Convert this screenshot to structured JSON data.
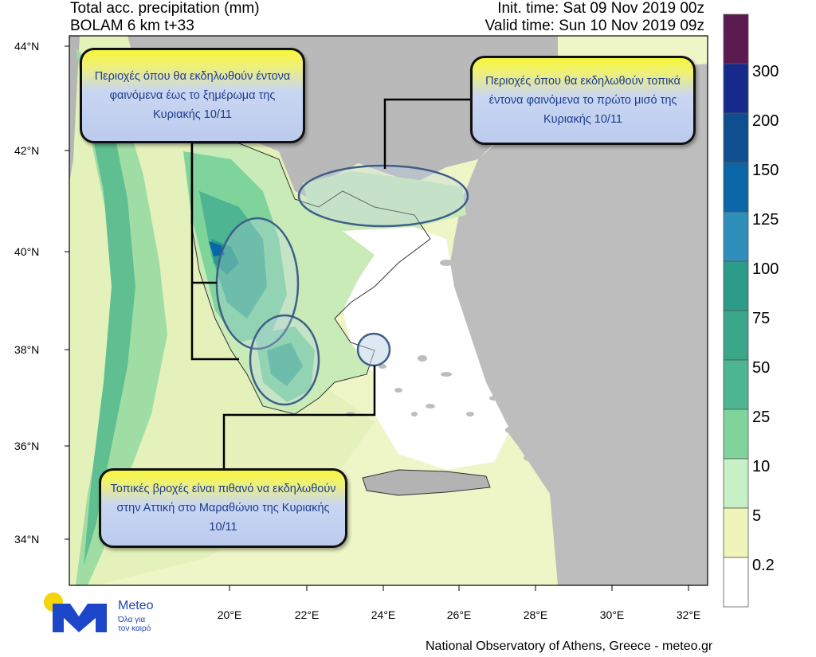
{
  "header": {
    "title_line1": "Total acc. precipitation (mm)",
    "title_line2": "BOLAM 6 km t+33",
    "init_time": "Init. time: Sat 09 Nov 2019 00z",
    "valid_time": "Valid time: Sun 10 Nov 2019 09z"
  },
  "axes": {
    "lat_labels": [
      "44°N",
      "42°N",
      "40°N",
      "38°N",
      "36°N",
      "34°N"
    ],
    "lon_labels": [
      "20°E",
      "22°E",
      "24°E",
      "26°E",
      "28°E",
      "30°E",
      "32°E"
    ]
  },
  "colorbar": {
    "levels": [
      "300",
      "200",
      "150",
      "125",
      "100",
      "75",
      "50",
      "25",
      "10",
      "5",
      "0.2"
    ],
    "colors": [
      "#5b1a50",
      "#162a8c",
      "#0f4f8f",
      "#0b66a8",
      "#2f8fbb",
      "#2c9b8a",
      "#3aa788",
      "#4db592",
      "#7fd49c",
      "#c8f0c6",
      "#eff5b9",
      "#ffffff"
    ]
  },
  "callouts": {
    "west": "Περιοχές όπου θα εκδηλωθούν έντονα φαινόμενα έως το ξημέρωμα της Κυριακής 10/11",
    "north": "Περιοχές όπου θα εκδηλωθούν τοπικά έντονα φαινόμενα το πρώτο μισό της Κυριακής 10/11",
    "attica": "Τοπικές βροχές είναι πιθανό να εκδηλωθούν στην Αττική στο Μαραθώνιο της Κυριακής 10/11"
  },
  "logo": {
    "name": "Meteo",
    "tagline_line1": "Όλα για",
    "tagline_line2": "τον καιρό"
  },
  "footer": "National Observatory of Athens, Greece - meteo.gr"
}
